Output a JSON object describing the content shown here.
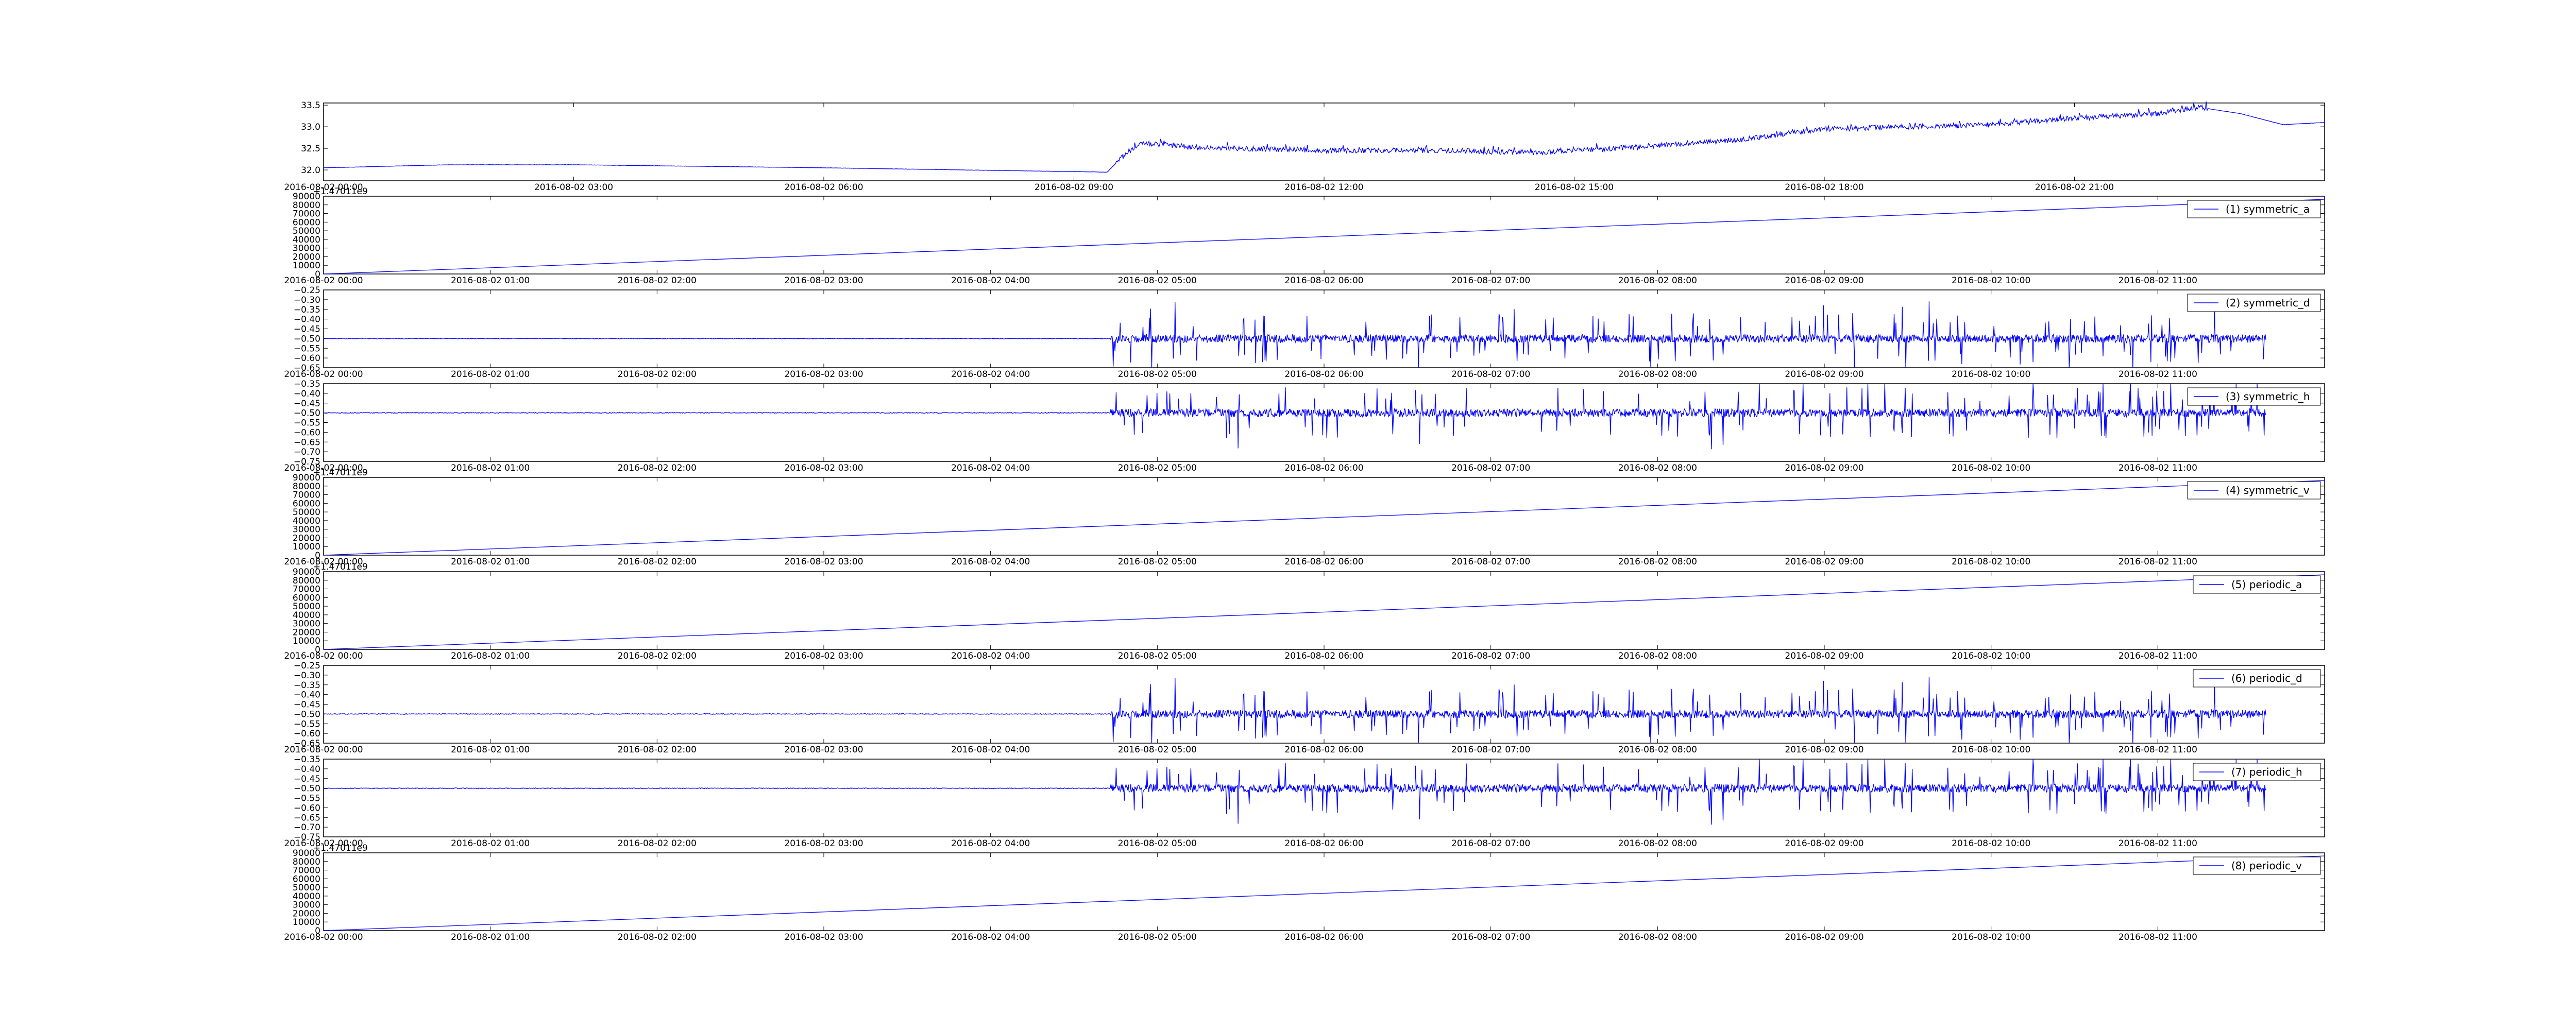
{
  "colors": {
    "line": "#0000ff",
    "axes": "#000000",
    "background": "#ffffff"
  },
  "chart_data": [
    {
      "type": "line",
      "panel": 0,
      "legend": null,
      "ylim": [
        31.75,
        33.55
      ],
      "yticks": [
        "32.0",
        "32.5",
        "33.0",
        "33.5"
      ],
      "ytick_values": [
        32.0,
        32.5,
        33.0,
        33.5
      ],
      "xlim_hours": [
        0,
        24
      ],
      "xticks": [
        "2016-08-02 00:00",
        "2016-08-02 03:00",
        "2016-08-02 06:00",
        "2016-08-02 09:00",
        "2016-08-02 12:00",
        "2016-08-02 15:00",
        "2016-08-02 18:00",
        "2016-08-02 21:00"
      ],
      "xtick_hours": [
        0,
        3,
        6,
        9,
        12,
        15,
        18,
        21
      ],
      "series": [
        {
          "kind": "trend",
          "x_hours": [
            0,
            1.5,
            3,
            6,
            9.4,
            9.55,
            9.8,
            10.5,
            12,
            13.5,
            14.5,
            15.5,
            17,
            18,
            19,
            20,
            21,
            22,
            22.5,
            23.0,
            23.5,
            24
          ],
          "y": [
            32.05,
            32.12,
            32.12,
            32.05,
            31.95,
            32.25,
            32.62,
            32.52,
            32.45,
            32.45,
            32.4,
            32.5,
            32.7,
            32.95,
            33.0,
            33.05,
            33.2,
            33.3,
            33.45,
            33.3,
            33.05,
            33.1
          ],
          "noise_start_hour": 9.5,
          "noise_end_hour": 22.6,
          "noise_amplitude": 0.06
        }
      ]
    },
    {
      "type": "line",
      "panel": 1,
      "legend": "(1) symmetric_a",
      "ylim": [
        0,
        90000
      ],
      "yticks": [
        "0",
        "10000",
        "20000",
        "30000",
        "40000",
        "50000",
        "60000",
        "70000",
        "80000",
        "90000"
      ],
      "ytick_values": [
        0,
        10000,
        20000,
        30000,
        40000,
        50000,
        60000,
        70000,
        80000,
        90000
      ],
      "xlim_hours": [
        0,
        12
      ],
      "xticks": [
        "2016-08-02 00:00",
        "2016-08-02 01:00",
        "2016-08-02 02:00",
        "2016-08-02 03:00",
        "2016-08-02 04:00",
        "2016-08-02 05:00",
        "2016-08-02 06:00",
        "2016-08-02 07:00",
        "2016-08-02 08:00",
        "2016-08-02 09:00",
        "2016-08-02 10:00",
        "2016-08-02 11:00"
      ],
      "xtick_hours": [
        0,
        1,
        2,
        3,
        4,
        5,
        6,
        7,
        8,
        9,
        10,
        11
      ],
      "offset_text": "+1.47011e9",
      "series": [
        {
          "kind": "linear",
          "x_hours": [
            0,
            12
          ],
          "y": [
            0,
            86400
          ]
        }
      ]
    },
    {
      "type": "line",
      "panel": 2,
      "legend": "(2) symmetric_d",
      "ylim": [
        -0.65,
        -0.25
      ],
      "yticks": [
        "−0.65",
        "−0.60",
        "−0.55",
        "−0.50",
        "−0.45",
        "−0.40",
        "−0.35",
        "−0.30",
        "−0.25"
      ],
      "ytick_values": [
        -0.65,
        -0.6,
        -0.55,
        -0.5,
        -0.45,
        -0.4,
        -0.35,
        -0.3,
        -0.25
      ],
      "xlim_hours": [
        0,
        12
      ],
      "xticks": [
        "2016-08-02 00:00",
        "2016-08-02 01:00",
        "2016-08-02 02:00",
        "2016-08-02 03:00",
        "2016-08-02 04:00",
        "2016-08-02 05:00",
        "2016-08-02 06:00",
        "2016-08-02 07:00",
        "2016-08-02 08:00",
        "2016-08-02 09:00",
        "2016-08-02 10:00",
        "2016-08-02 11:00"
      ],
      "xtick_hours": [
        0,
        1,
        2,
        3,
        4,
        5,
        6,
        7,
        8,
        9,
        10,
        11
      ],
      "series": [
        {
          "kind": "noise",
          "baseline": -0.5,
          "quiet_end_hour": 4.72,
          "active_end_hour": 11.65,
          "amplitude": 0.06,
          "peak": 0.2,
          "seed": 7
        }
      ]
    },
    {
      "type": "line",
      "panel": 3,
      "legend": "(3) symmetric_h",
      "ylim": [
        -0.75,
        -0.35
      ],
      "yticks": [
        "−0.75",
        "−0.70",
        "−0.65",
        "−0.60",
        "−0.55",
        "−0.50",
        "−0.45",
        "−0.40",
        "−0.35"
      ],
      "ytick_values": [
        -0.75,
        -0.7,
        -0.65,
        -0.6,
        -0.55,
        -0.5,
        -0.45,
        -0.4,
        -0.35
      ],
      "xlim_hours": [
        0,
        12
      ],
      "xticks": [
        "2016-08-02 00:00",
        "2016-08-02 01:00",
        "2016-08-02 02:00",
        "2016-08-02 03:00",
        "2016-08-02 04:00",
        "2016-08-02 05:00",
        "2016-08-02 06:00",
        "2016-08-02 07:00",
        "2016-08-02 08:00",
        "2016-08-02 09:00",
        "2016-08-02 10:00",
        "2016-08-02 11:00"
      ],
      "xtick_hours": [
        0,
        1,
        2,
        3,
        4,
        5,
        6,
        7,
        8,
        9,
        10,
        11
      ],
      "series": [
        {
          "kind": "noise",
          "baseline": -0.5,
          "quiet_end_hour": 4.72,
          "active_end_hour": 11.65,
          "amplitude": 0.06,
          "peak": 0.2,
          "seed": 13
        }
      ]
    },
    {
      "type": "line",
      "panel": 4,
      "legend": "(4) symmetric_v",
      "ylim": [
        0,
        90000
      ],
      "yticks": [
        "0",
        "10000",
        "20000",
        "30000",
        "40000",
        "50000",
        "60000",
        "70000",
        "80000",
        "90000"
      ],
      "ytick_values": [
        0,
        10000,
        20000,
        30000,
        40000,
        50000,
        60000,
        70000,
        80000,
        90000
      ],
      "xlim_hours": [
        0,
        12
      ],
      "xticks": [
        "2016-08-02 00:00",
        "2016-08-02 01:00",
        "2016-08-02 02:00",
        "2016-08-02 03:00",
        "2016-08-02 04:00",
        "2016-08-02 05:00",
        "2016-08-02 06:00",
        "2016-08-02 07:00",
        "2016-08-02 08:00",
        "2016-08-02 09:00",
        "2016-08-02 10:00",
        "2016-08-02 11:00"
      ],
      "xtick_hours": [
        0,
        1,
        2,
        3,
        4,
        5,
        6,
        7,
        8,
        9,
        10,
        11
      ],
      "offset_text": "+1.47011e9",
      "series": [
        {
          "kind": "linear",
          "x_hours": [
            0,
            12
          ],
          "y": [
            0,
            86400
          ]
        }
      ]
    },
    {
      "type": "line",
      "panel": 5,
      "legend": "(5) periodic_a",
      "ylim": [
        0,
        90000
      ],
      "yticks": [
        "0",
        "10000",
        "20000",
        "30000",
        "40000",
        "50000",
        "60000",
        "70000",
        "80000",
        "90000"
      ],
      "ytick_values": [
        0,
        10000,
        20000,
        30000,
        40000,
        50000,
        60000,
        70000,
        80000,
        90000
      ],
      "xlim_hours": [
        0,
        12
      ],
      "xticks": [
        "2016-08-02 00:00",
        "2016-08-02 01:00",
        "2016-08-02 02:00",
        "2016-08-02 03:00",
        "2016-08-02 04:00",
        "2016-08-02 05:00",
        "2016-08-02 06:00",
        "2016-08-02 07:00",
        "2016-08-02 08:00",
        "2016-08-02 09:00",
        "2016-08-02 10:00",
        "2016-08-02 11:00"
      ],
      "xtick_hours": [
        0,
        1,
        2,
        3,
        4,
        5,
        6,
        7,
        8,
        9,
        10,
        11
      ],
      "offset_text": "+1.47011e9",
      "series": [
        {
          "kind": "linear",
          "x_hours": [
            0,
            12
          ],
          "y": [
            0,
            86400
          ]
        }
      ]
    },
    {
      "type": "line",
      "panel": 6,
      "legend": "(6) periodic_d",
      "ylim": [
        -0.65,
        -0.25
      ],
      "yticks": [
        "−0.65",
        "−0.60",
        "−0.55",
        "−0.50",
        "−0.45",
        "−0.40",
        "−0.35",
        "−0.30",
        "−0.25"
      ],
      "ytick_values": [
        -0.65,
        -0.6,
        -0.55,
        -0.5,
        -0.45,
        -0.4,
        -0.35,
        -0.3,
        -0.25
      ],
      "xlim_hours": [
        0,
        12
      ],
      "xticks": [
        "2016-08-02 00:00",
        "2016-08-02 01:00",
        "2016-08-02 02:00",
        "2016-08-02 03:00",
        "2016-08-02 04:00",
        "2016-08-02 05:00",
        "2016-08-02 06:00",
        "2016-08-02 07:00",
        "2016-08-02 08:00",
        "2016-08-02 09:00",
        "2016-08-02 10:00",
        "2016-08-02 11:00"
      ],
      "xtick_hours": [
        0,
        1,
        2,
        3,
        4,
        5,
        6,
        7,
        8,
        9,
        10,
        11
      ],
      "series": [
        {
          "kind": "noise",
          "baseline": -0.5,
          "quiet_end_hour": 4.72,
          "active_end_hour": 11.65,
          "amplitude": 0.06,
          "peak": 0.2,
          "seed": 7
        }
      ]
    },
    {
      "type": "line",
      "panel": 7,
      "legend": "(7) periodic_h",
      "ylim": [
        -0.75,
        -0.35
      ],
      "yticks": [
        "−0.75",
        "−0.70",
        "−0.65",
        "−0.60",
        "−0.55",
        "−0.50",
        "−0.45",
        "−0.40",
        "−0.35"
      ],
      "ytick_values": [
        -0.75,
        -0.7,
        -0.65,
        -0.6,
        -0.55,
        -0.5,
        -0.45,
        -0.4,
        -0.35
      ],
      "xlim_hours": [
        0,
        12
      ],
      "xticks": [
        "2016-08-02 00:00",
        "2016-08-02 01:00",
        "2016-08-02 02:00",
        "2016-08-02 03:00",
        "2016-08-02 04:00",
        "2016-08-02 05:00",
        "2016-08-02 06:00",
        "2016-08-02 07:00",
        "2016-08-02 08:00",
        "2016-08-02 09:00",
        "2016-08-02 10:00",
        "2016-08-02 11:00"
      ],
      "xtick_hours": [
        0,
        1,
        2,
        3,
        4,
        5,
        6,
        7,
        8,
        9,
        10,
        11
      ],
      "series": [
        {
          "kind": "noise",
          "baseline": -0.5,
          "quiet_end_hour": 4.72,
          "active_end_hour": 11.65,
          "amplitude": 0.06,
          "peak": 0.2,
          "seed": 13
        }
      ]
    },
    {
      "type": "line",
      "panel": 8,
      "legend": "(8) periodic_v",
      "ylim": [
        0,
        90000
      ],
      "yticks": [
        "0",
        "10000",
        "20000",
        "30000",
        "40000",
        "50000",
        "60000",
        "70000",
        "80000",
        "90000"
      ],
      "ytick_values": [
        0,
        10000,
        20000,
        30000,
        40000,
        50000,
        60000,
        70000,
        80000,
        90000
      ],
      "xlim_hours": [
        0,
        12
      ],
      "xticks": [
        "2016-08-02 00:00",
        "2016-08-02 01:00",
        "2016-08-02 02:00",
        "2016-08-02 03:00",
        "2016-08-02 04:00",
        "2016-08-02 05:00",
        "2016-08-02 06:00",
        "2016-08-02 07:00",
        "2016-08-02 08:00",
        "2016-08-02 09:00",
        "2016-08-02 10:00",
        "2016-08-02 11:00"
      ],
      "xtick_hours": [
        0,
        1,
        2,
        3,
        4,
        5,
        6,
        7,
        8,
        9,
        10,
        11
      ],
      "offset_text": "+1.47011e9",
      "series": [
        {
          "kind": "linear",
          "x_hours": [
            0,
            12
          ],
          "y": [
            0,
            86400
          ]
        }
      ]
    }
  ]
}
